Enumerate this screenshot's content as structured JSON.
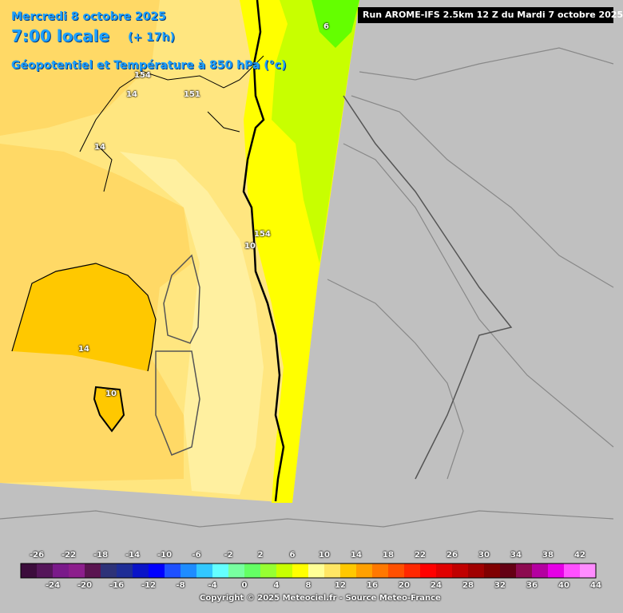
{
  "header": {
    "date": "Mercredi 8 octobre 2025",
    "local_time": "7:00 locale",
    "offset": "(+ 17h)",
    "parameter": "Géopotentiel et Température à 850 hPa (°c)"
  },
  "run_banner": "Run AROME-IFS 2.5km 12 Z du Mardi 7 octobre 2025",
  "contour_labels": [
    "6",
    "154",
    "14",
    "151",
    "14",
    "154",
    "10",
    "14",
    "10"
  ],
  "legend": {
    "top_labels": [
      "-26",
      "-22",
      "-18",
      "-14",
      "-10",
      "-6",
      "-2",
      "2",
      "6",
      "10",
      "14",
      "18",
      "22",
      "26",
      "30",
      "34",
      "38",
      "42"
    ],
    "bottom_labels": [
      "-24",
      "-20",
      "-16",
      "-12",
      "-8",
      "-4",
      "0",
      "4",
      "8",
      "12",
      "16",
      "20",
      "24",
      "28",
      "32",
      "36",
      "40",
      "44"
    ],
    "colors": [
      "#3c0d3c",
      "#55165a",
      "#7a1a8a",
      "#8c1e8c",
      "#5a1450",
      "#2d3278",
      "#1e2d96",
      "#0a14c8",
      "#0000ff",
      "#1e50ff",
      "#1e8cff",
      "#32c8ff",
      "#64ffff",
      "#78ffa0",
      "#64ff64",
      "#96ff32",
      "#c8ff00",
      "#ffff00",
      "#ffff96",
      "#ffe664",
      "#ffc800",
      "#ffa000",
      "#ff7800",
      "#ff5000",
      "#ff2800",
      "#ff0000",
      "#e00000",
      "#c00000",
      "#a00000",
      "#800000",
      "#640014",
      "#8c0a50",
      "#b400a0",
      "#e600e6",
      "#ff50ff",
      "#ff8cff"
    ]
  },
  "copyright": "Copyright © 2025 Meteociel.fr - Source Meteo-France"
}
